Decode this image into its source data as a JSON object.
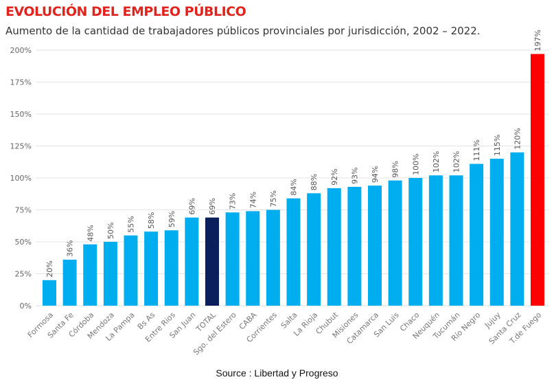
{
  "chart_data": {
    "type": "bar",
    "title": "EVOLUCIÓN DEL EMPLEO PÚBLICO",
    "subtitle": "Aumento de la cantidad de trabajadores públicos provinciales por jurisdicción, 2002 – 2022.",
    "categories": [
      "Formosa",
      "Santa Fe",
      "Córdoba",
      "Mendoza",
      "La Pampa",
      "Bs As",
      "Entre Rios",
      "San Juan",
      "TOTAL",
      "Sgo. del Estero",
      "CABA",
      "Corrientes",
      "Salta",
      "La Rioja",
      "Chubut",
      "Misiones",
      "Catamarca",
      "San Luis",
      "Chaco",
      "Neuquén",
      "Tucumán",
      "Río Negro",
      "Jujuy",
      "Santa Cruz",
      "T.de Fuego"
    ],
    "values": [
      20,
      36,
      48,
      50,
      55,
      58,
      59,
      69,
      69,
      73,
      74,
      75,
      84,
      88,
      92,
      93,
      94,
      98,
      100,
      102,
      102,
      111,
      115,
      120,
      197
    ],
    "labels": [
      "20%",
      "36%",
      "48%",
      "50%",
      "55%",
      "58%",
      "59%",
      "69%",
      "69%",
      "73%",
      "74%",
      "75%",
      "84%",
      "88%",
      "92%",
      "93%",
      "94%",
      "98%",
      "100%",
      "102%",
      "102%",
      "111%",
      "115%",
      "120%",
      "197%"
    ],
    "yticks": [
      "0%",
      "25%",
      "50%",
      "75%",
      "100%",
      "125%",
      "150%",
      "175%",
      "200%"
    ],
    "ylim": [
      0,
      200
    ],
    "grid": true,
    "colors": {
      "default": "#00aeef",
      "total": "#0a1f5c",
      "highlight": "#ff0000"
    },
    "source": "Source : Libertad y Progreso"
  }
}
